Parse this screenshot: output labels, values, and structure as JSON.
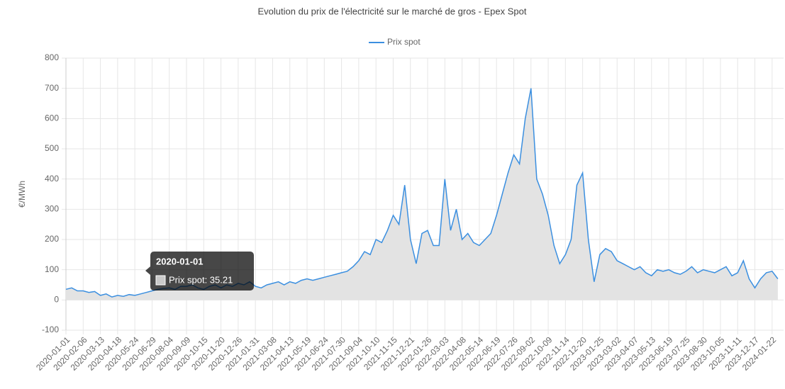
{
  "chart_data": {
    "type": "line",
    "title": "Evolution du prix de l'électricité sur le marché de gros - Epex Spot",
    "y_label": "€/MWh",
    "categories": [
      "2020-01-01",
      null,
      null,
      "2020-02-06",
      null,
      null,
      "2020-03-13",
      null,
      null,
      "2020-04-18",
      null,
      null,
      "2020-05-24",
      null,
      null,
      "2020-06-29",
      null,
      null,
      "2020-08-04",
      null,
      null,
      "2020-09-09",
      null,
      null,
      "2020-10-15",
      null,
      null,
      "2020-11-20",
      null,
      null,
      "2020-12-26",
      null,
      null,
      "2021-01-31",
      null,
      null,
      "2021-03-08",
      null,
      null,
      "2021-04-13",
      null,
      null,
      "2021-05-19",
      null,
      null,
      "2021-06-24",
      null,
      null,
      "2021-07-30",
      null,
      null,
      "2021-09-04",
      null,
      null,
      "2021-10-10",
      null,
      null,
      "2021-11-15",
      null,
      null,
      "2021-12-21",
      null,
      null,
      "2022-01-26",
      null,
      null,
      "2022-03-03",
      null,
      null,
      "2022-04-08",
      null,
      null,
      "2022-05-14",
      null,
      null,
      "2022-06-19",
      null,
      null,
      "2022-07-26",
      null,
      null,
      "2022-09-02",
      null,
      null,
      "2022-10-09",
      null,
      null,
      "2022-11-14",
      null,
      null,
      "2022-12-20",
      null,
      null,
      "2023-01-25",
      null,
      null,
      "2023-03-02",
      null,
      null,
      "2023-04-07",
      null,
      null,
      "2023-05-13",
      null,
      null,
      "2023-06-19",
      null,
      null,
      "2023-07-25",
      null,
      null,
      "2023-08-30",
      null,
      null,
      "2023-10-05",
      null,
      null,
      "2023-11-11",
      null,
      null,
      "2023-12-17",
      null,
      null,
      "2024-01-22",
      null
    ],
    "series": [
      {
        "name": "Prix spot",
        "color": "#3b8fe0",
        "fill": "#e3e3e3",
        "values": [
          35.21,
          40,
          30,
          30,
          25,
          28,
          15,
          20,
          10,
          15,
          12,
          18,
          15,
          20,
          25,
          30,
          35,
          38,
          40,
          35,
          45,
          45,
          50,
          40,
          35,
          45,
          50,
          40,
          50,
          45,
          55,
          50,
          60,
          45,
          40,
          50,
          55,
          60,
          50,
          60,
          55,
          65,
          70,
          65,
          70,
          75,
          80,
          85,
          90,
          95,
          110,
          130,
          160,
          150,
          200,
          190,
          230,
          280,
          250,
          380,
          200,
          120,
          220,
          230,
          180,
          180,
          400,
          230,
          300,
          200,
          220,
          190,
          180,
          200,
          220,
          280,
          350,
          420,
          480,
          450,
          600,
          700,
          400,
          350,
          280,
          180,
          120,
          150,
          200,
          380,
          420,
          200,
          60,
          150,
          170,
          160,
          130,
          120,
          110,
          100,
          110,
          90,
          80,
          100,
          95,
          100,
          90,
          85,
          95,
          110,
          90,
          100,
          95,
          90,
          100,
          110,
          80,
          90,
          130,
          70,
          40,
          70,
          90,
          95,
          70
        ]
      }
    ],
    "ylim": [
      -100,
      800
    ],
    "yticks": [
      -100,
      0,
      100,
      200,
      300,
      400,
      500,
      600,
      700,
      800
    ],
    "grid": true,
    "legend": "top",
    "tooltip": {
      "title": "2020-01-01",
      "label": "Prix spot: 35.21"
    }
  }
}
